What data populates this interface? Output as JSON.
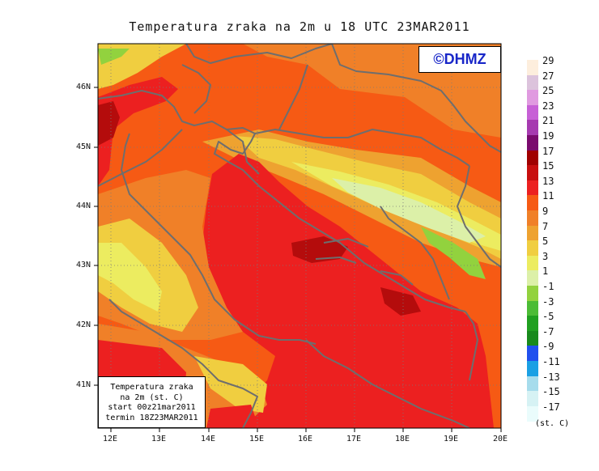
{
  "title": "Temperatura zraka na 2m u 18 UTC 23MAR2011",
  "copyright": "©DHMZ",
  "info_box": {
    "line1": "Temperatura zraka",
    "line2": "na 2m (st. C)",
    "line3": "start 00z21mar2011",
    "line4": "termin 18Z23MAR2011"
  },
  "lat_labels": [
    "46N",
    "45N",
    "44N",
    "43N",
    "42N",
    "41N"
  ],
  "lon_labels": [
    "12E",
    "13E",
    "14E",
    "15E",
    "16E",
    "17E",
    "18E",
    "19E",
    "20E"
  ],
  "legend": {
    "unit": "(st. C)",
    "levels": [
      "29",
      "27",
      "25",
      "23",
      "21",
      "19",
      "17",
      "15",
      "13",
      "11",
      "9",
      "7",
      "5",
      "3",
      "1",
      "-1",
      "-3",
      "-5",
      "-7",
      "-9",
      "-11",
      "-13",
      "-15",
      "-17"
    ],
    "colors": [
      "#fdeedd",
      "#dcc3dc",
      "#e09ae0",
      "#c760d6",
      "#a63ab0",
      "#7a0a6e",
      "#a00000",
      "#c80e0e",
      "#ec2020",
      "#f65a14",
      "#f08028",
      "#eea230",
      "#f0ce40",
      "#ecec60",
      "#dcf0a8",
      "#92d23e",
      "#4cbc36",
      "#20a020",
      "#188a1c",
      "#2050ee",
      "#1aa0e4",
      "#a6dcec",
      "#d6f2f4",
      "#eafcfc"
    ]
  },
  "map_colors": {
    "hot": "#ec2020",
    "very_hot": "#b40c0c",
    "warm": "#f65a14",
    "mild": "#f08028",
    "cool": "#eea230",
    "cooler": "#f0ce40",
    "cold": "#ecec60",
    "colder": "#dcf0a8",
    "green": "#92d23e",
    "coast": "#707070",
    "grid": "#7a7a7a"
  }
}
